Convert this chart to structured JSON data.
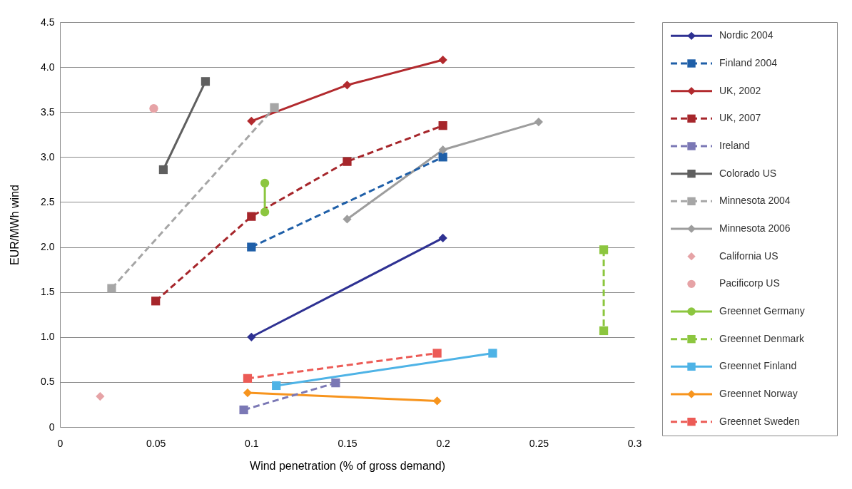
{
  "chart_data": {
    "type": "line",
    "xlabel": "Wind penetration (% of gross demand)",
    "ylabel": "EUR/MWh wind",
    "xlim": [
      0,
      0.3
    ],
    "ylim": [
      0,
      4.5
    ],
    "xticks": [
      0,
      0.05,
      0.1,
      0.15,
      0.2,
      0.25,
      0.3
    ],
    "yticks": [
      0,
      0.5,
      {
        "value": 1,
        "label": "1.0"
      },
      1.5,
      {
        "value": 2,
        "label": "2.0"
      },
      2.5,
      {
        "value": 3,
        "label": "3.0"
      },
      3.5,
      {
        "value": 4,
        "label": "4.0"
      },
      4.5
    ],
    "grid": "y",
    "legend": "right",
    "series": [
      {
        "name": "Nordic 2004",
        "color": "#2e3192",
        "marker": "diamond",
        "line_style": "solid",
        "x": [
          0.1,
          0.2
        ],
        "values": [
          1.0,
          2.1
        ]
      },
      {
        "name": "Finland 2004",
        "color": "#1f5fa8",
        "marker": "square",
        "line_style": "dashed",
        "x": [
          0.1,
          0.2
        ],
        "values": [
          2.0,
          3.0
        ]
      },
      {
        "name": "UK, 2002",
        "color": "#b22a2e",
        "marker": "diamond",
        "line_style": "solid",
        "x": [
          0.1,
          0.15,
          0.2
        ],
        "values": [
          3.4,
          3.8,
          4.08
        ]
      },
      {
        "name": "UK, 2007",
        "color": "#a6262b",
        "marker": "square",
        "line_style": "dashed",
        "x": [
          0.05,
          0.1,
          0.15,
          0.2
        ],
        "values": [
          1.4,
          2.34,
          2.95,
          3.35
        ]
      },
      {
        "name": "Ireland",
        "color": "#7b78b5",
        "marker": "square",
        "line_style": "dashed",
        "x": [
          0.096,
          0.144
        ],
        "values": [
          0.19,
          0.49
        ]
      },
      {
        "name": "Colorado US",
        "color": "#5f5f5f",
        "marker": "square",
        "line_style": "solid",
        "x": [
          0.054,
          0.076
        ],
        "values": [
          2.86,
          3.84
        ]
      },
      {
        "name": "Minnesota 2004",
        "color": "#a6a6a6",
        "marker": "square",
        "line_style": "dashed",
        "x": [
          0.027,
          0.112
        ],
        "values": [
          1.54,
          3.55
        ]
      },
      {
        "name": "Minnesota 2006",
        "color": "#9d9d9d",
        "marker": "diamond",
        "line_style": "solid",
        "x": [
          0.15,
          0.2,
          0.25
        ],
        "values": [
          2.31,
          3.08,
          3.39
        ]
      },
      {
        "name": "California US",
        "type": "scatter",
        "color": "#e6a3a6",
        "marker": "diamond",
        "x": [
          0.021
        ],
        "values": [
          0.34
        ]
      },
      {
        "name": "Pacificorp US",
        "type": "scatter",
        "color": "#e6a3a6",
        "marker": "circle",
        "x": [
          0.049
        ],
        "values": [
          3.54
        ]
      },
      {
        "name": "Greennet Germany",
        "color": "#8cc63f",
        "marker": "circle",
        "line_style": "solid",
        "x": [
          0.107,
          0.107
        ],
        "values": [
          2.71,
          2.39
        ]
      },
      {
        "name": "Greennet Denmark",
        "color": "#8cc63f",
        "marker": "square",
        "line_style": "dashed",
        "x": [
          0.284,
          0.284
        ],
        "values": [
          1.97,
          1.07
        ]
      },
      {
        "name": "Greennet Finland",
        "color": "#4eb3e6",
        "marker": "square",
        "line_style": "solid",
        "x": [
          0.113,
          0.226
        ],
        "values": [
          0.46,
          0.82
        ]
      },
      {
        "name": "Greennet Norway",
        "color": "#f7941d",
        "marker": "diamond",
        "line_style": "solid",
        "x": [
          0.098,
          0.197
        ],
        "values": [
          0.38,
          0.29
        ]
      },
      {
        "name": "Greennet Sweden",
        "color": "#ec5b56",
        "marker": "square",
        "line_style": "dashed",
        "x": [
          0.098,
          0.197
        ],
        "values": [
          0.54,
          0.82
        ]
      }
    ]
  }
}
